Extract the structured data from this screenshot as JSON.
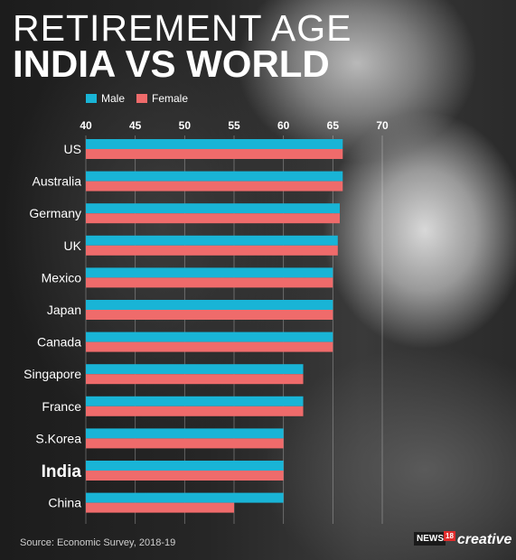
{
  "header": {
    "title_line1": "RETIREMENT AGE",
    "title_line2": "INDIA VS WORLD"
  },
  "legend": {
    "male_label": "Male",
    "female_label": "Female"
  },
  "colors": {
    "male": "#19b4d6",
    "female": "#ef6b6b"
  },
  "footer": {
    "source": "Source: Economic Survey, 2018-19",
    "brand_news": "NEWS",
    "brand_18": "18",
    "brand_creative": "creative"
  },
  "chart_data": {
    "type": "bar",
    "orientation": "horizontal",
    "title": "RETIREMENT AGE INDIA VS WORLD",
    "xlim": [
      40,
      70
    ],
    "xticks": [
      40,
      45,
      50,
      55,
      60,
      65,
      70
    ],
    "categories": [
      "US",
      "Australia",
      "Germany",
      "UK",
      "Mexico",
      "Japan",
      "Canada",
      "Singapore",
      "France",
      "S.Korea",
      "India",
      "China"
    ],
    "highlight": "India",
    "series": [
      {
        "name": "Male",
        "values": [
          66,
          66,
          65.7,
          65.5,
          65,
          65,
          65,
          62,
          62,
          60,
          60,
          60
        ]
      },
      {
        "name": "Female",
        "values": [
          66,
          66,
          65.7,
          65.5,
          65,
          65,
          65,
          62,
          62,
          60,
          60,
          55
        ]
      }
    ],
    "legend_position": "top-left",
    "grid": true
  }
}
